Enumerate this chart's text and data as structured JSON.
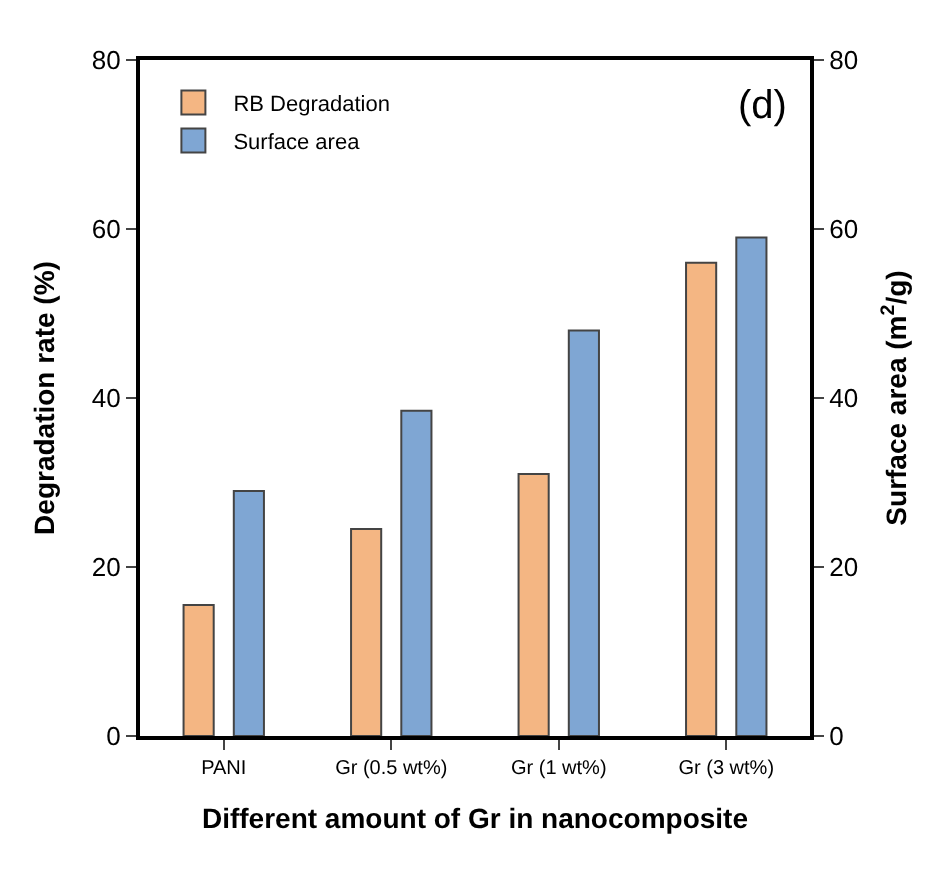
{
  "chart_data": {
    "type": "bar",
    "categories": [
      "PANI",
      "Gr (0.5 wt%)",
      "Gr (1 wt%)",
      "Gr (3 wt%)"
    ],
    "series": [
      {
        "name": "RB Degradation",
        "color": "#f4b683",
        "values": [
          15.5,
          24.5,
          31,
          56
        ]
      },
      {
        "name": "Surface area",
        "color": "#7fa6d3",
        "values": [
          29,
          38.5,
          48,
          59
        ],
        "axis": "y2"
      }
    ],
    "xlabel": "Different amount of Gr in nanocomposite",
    "ylabel": "Degradation rate (%)",
    "y2label": "Surface area (m$^{2}$/g)",
    "ylim": [
      0,
      80
    ],
    "yticks": [
      0,
      20,
      40,
      60,
      80
    ],
    "y2lim": [
      0,
      80
    ],
    "y2ticks": [
      0,
      20,
      40,
      60,
      80
    ],
    "annotations": [
      "(d)"
    ],
    "legend": "top left"
  }
}
